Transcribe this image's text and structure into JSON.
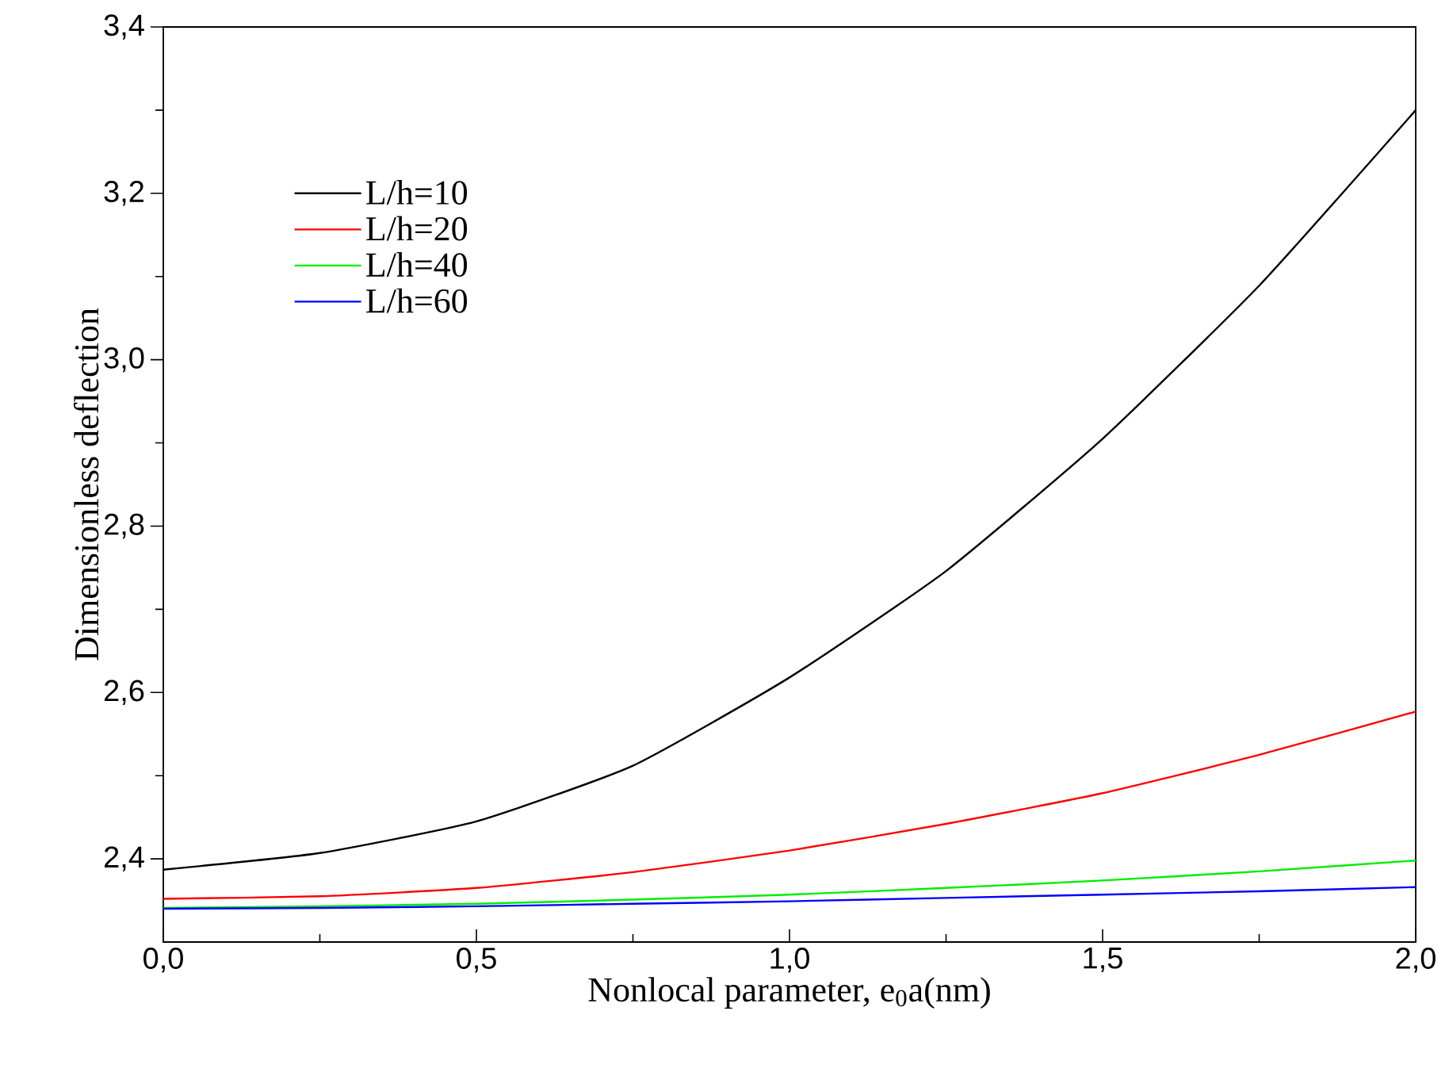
{
  "chart_data": {
    "type": "line",
    "xlabel": "Nonlocal parameter, e$_{0}$a(nm)",
    "ylabel": "Dimensionless deflection",
    "x": [
      0,
      0.25,
      0.5,
      0.75,
      1.0,
      1.25,
      1.5,
      1.75,
      2.0
    ],
    "series": [
      {
        "name": "L/h=10",
        "color": "#000000",
        "values": [
          2.387,
          2.407,
          2.445,
          2.512,
          2.618,
          2.746,
          2.905,
          3.089,
          3.3
        ]
      },
      {
        "name": "L/h=20",
        "color": "#ff0000",
        "values": [
          2.352,
          2.355,
          2.365,
          2.384,
          2.41,
          2.442,
          2.479,
          2.525,
          2.577
        ]
      },
      {
        "name": "L/h=40",
        "color": "#00ee00",
        "values": [
          2.341,
          2.343,
          2.346,
          2.351,
          2.357,
          2.365,
          2.374,
          2.385,
          2.398
        ]
      },
      {
        "name": "L/h=60",
        "color": "#0000ff",
        "values": [
          2.34,
          2.341,
          2.343,
          2.346,
          2.349,
          2.353,
          2.357,
          2.361,
          2.366
        ]
      }
    ],
    "xlim": [
      0,
      2
    ],
    "ylim": [
      2.3,
      3.4
    ],
    "xticks": [
      {
        "value": 0,
        "label": "0,0"
      },
      {
        "value": 0.5,
        "label": "0,5"
      },
      {
        "value": 1.0,
        "label": "1,0"
      },
      {
        "value": 1.5,
        "label": "1,5"
      },
      {
        "value": 2.0,
        "label": "2,0"
      }
    ],
    "yticks": [
      {
        "value": 2.4,
        "label": "2,4"
      },
      {
        "value": 2.6,
        "label": "2,6"
      },
      {
        "value": 2.8,
        "label": "2,8"
      },
      {
        "value": 3.0,
        "label": "3,0"
      },
      {
        "value": 3.2,
        "label": "3,2"
      },
      {
        "value": 3.4,
        "label": "3,4"
      }
    ],
    "legend": "top left",
    "grid": false,
    "marker": "none",
    "line_style": "solid"
  }
}
